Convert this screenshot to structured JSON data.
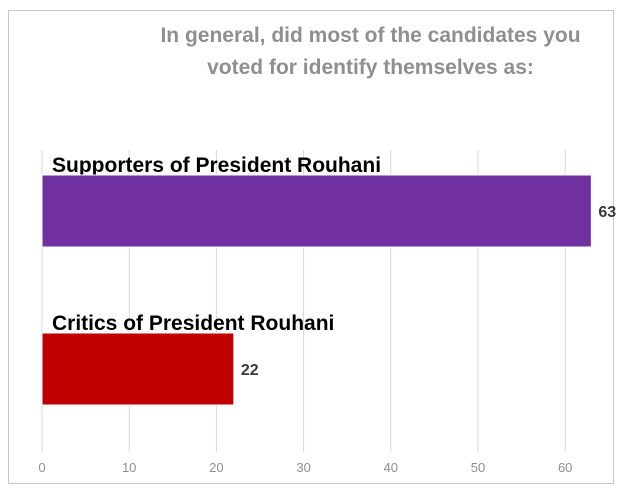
{
  "chart_data": {
    "type": "bar",
    "orientation": "horizontal",
    "title_lines": [
      "In general, did most of the candidates you",
      "voted for identify themselves as:"
    ],
    "categories": [
      "Supporters of President Rouhani",
      "Critics of President Rouhani"
    ],
    "values": [
      63,
      22
    ],
    "value_labels": [
      "63",
      "22"
    ],
    "bar_colors": [
      "#7030a0",
      "#c00000"
    ],
    "xlim": [
      0,
      65
    ],
    "xticks": [
      0,
      10,
      20,
      30,
      40,
      50,
      60
    ],
    "xtick_labels": [
      "0",
      "10",
      "20",
      "30",
      "40",
      "50",
      "60"
    ],
    "grid": true,
    "xlabel": "",
    "ylabel": ""
  }
}
